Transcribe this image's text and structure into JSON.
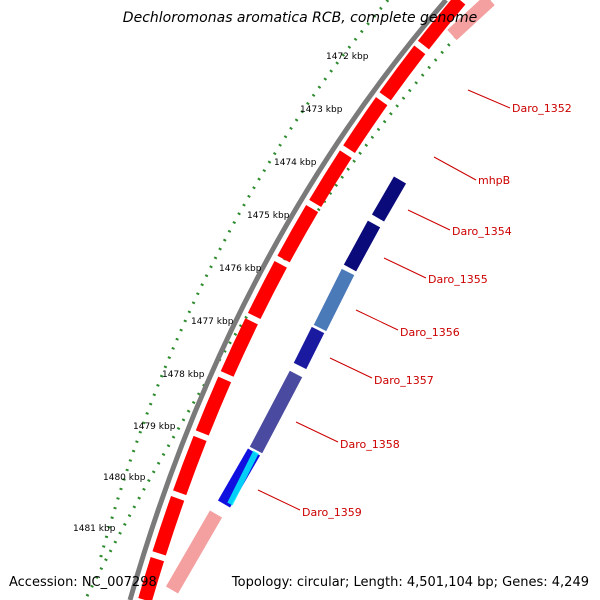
{
  "title": "Dechloromonas aromatica RCB, complete genome",
  "footer": {
    "accession": "Accession: NC_007298",
    "summary": "Topology: circular; Length: 4,501,104 bp; Genes: 4,249"
  },
  "colors": {
    "backbone": "#808080",
    "forward_gene": "#ff0000",
    "tick_forward": "#2e8b2e",
    "label": "#cc0000"
  },
  "scale_ticks": [
    "1472 kbp",
    "1473 kbp",
    "1474 kbp",
    "1475 kbp",
    "1476 kbp",
    "1477 kbp",
    "1478 kbp",
    "1479 kbp",
    "1480 kbp",
    "1481 kbp"
  ],
  "gene_labels": [
    "Daro_1352",
    "mhpB",
    "Daro_1354",
    "Daro_1355",
    "Daro_1356",
    "Daro_1357",
    "Daro_1358",
    "Daro_1359"
  ]
}
